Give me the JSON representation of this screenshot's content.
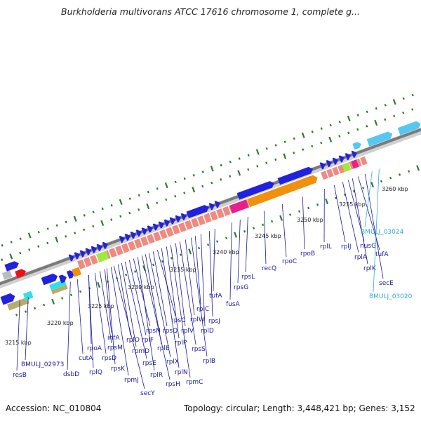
{
  "title": "Burkholderia multivorans ATCC 17616 chromosome 1, complete g...",
  "accession_text": "Accession: NC_010804",
  "summary_text": "Topology: circular; Length: 3,448,421 bp; Genes: 3,152",
  "colors": {
    "forward_cds": "#2222dd",
    "reverse_cds": "#55c8f0",
    "rrna": "#f08a80",
    "operon_orange": "#f0900c",
    "magenta": "#e8208c",
    "green": "#a0ea40",
    "gc_tick": "#2d7a2d",
    "label_default": "#1a1a9a",
    "label_highlight": "#33aadd"
  },
  "scale_ticks": [
    "3215 kbp",
    "3220 kbp",
    "3225 kbp",
    "3230 kbp",
    "3235 kbp",
    "3240 kbp",
    "3245 kbp",
    "3250 kbp",
    "3255 kbp",
    "3260 kbp"
  ],
  "gene_labels": [
    {
      "text": "resB",
      "highlight": false
    },
    {
      "text": "BMULJ_02973",
      "highlight": false
    },
    {
      "text": "dsbD",
      "highlight": false
    },
    {
      "text": "cutA",
      "highlight": false
    },
    {
      "text": "rpoA",
      "highlight": false
    },
    {
      "text": "rplQ",
      "highlight": false
    },
    {
      "text": "rpsD",
      "highlight": false
    },
    {
      "text": "rpsM",
      "highlight": false
    },
    {
      "text": "infA",
      "highlight": false
    },
    {
      "text": "rpsK",
      "highlight": false
    },
    {
      "text": "rpmJ",
      "highlight": false
    },
    {
      "text": "secY",
      "highlight": false
    },
    {
      "text": "rplO",
      "highlight": false
    },
    {
      "text": "rpmD",
      "highlight": false
    },
    {
      "text": "rpsE",
      "highlight": false
    },
    {
      "text": "rplF",
      "highlight": false
    },
    {
      "text": "rpsN",
      "highlight": false
    },
    {
      "text": "rplR",
      "highlight": false
    },
    {
      "text": "rpsH",
      "highlight": false
    },
    {
      "text": "rplE",
      "highlight": false
    },
    {
      "text": "rplX",
      "highlight": false
    },
    {
      "text": "rpsQ",
      "highlight": false
    },
    {
      "text": "rpsC",
      "highlight": false
    },
    {
      "text": "rplN",
      "highlight": false
    },
    {
      "text": "rplP",
      "highlight": false
    },
    {
      "text": "rpmC",
      "highlight": false
    },
    {
      "text": "rplV",
      "highlight": false
    },
    {
      "text": "rpsS",
      "highlight": false
    },
    {
      "text": "rplW",
      "highlight": false
    },
    {
      "text": "rplB",
      "highlight": false
    },
    {
      "text": "rplC",
      "highlight": false
    },
    {
      "text": "rplD",
      "highlight": false
    },
    {
      "text": "rpsJ",
      "highlight": false
    },
    {
      "text": "tufA",
      "highlight": false
    },
    {
      "text": "fusA",
      "highlight": false
    },
    {
      "text": "rpsG",
      "highlight": false
    },
    {
      "text": "rpsL",
      "highlight": false
    },
    {
      "text": "recQ",
      "highlight": false
    },
    {
      "text": "rpoC",
      "highlight": false
    },
    {
      "text": "rpoB",
      "highlight": false
    },
    {
      "text": "rplL",
      "highlight": false
    },
    {
      "text": "rplJ",
      "highlight": false
    },
    {
      "text": "rplA",
      "highlight": false
    },
    {
      "text": "nusG",
      "highlight": false
    },
    {
      "text": "rplK",
      "highlight": false
    },
    {
      "text": "tufA",
      "highlight": false
    },
    {
      "text": "secE",
      "highlight": false
    },
    {
      "text": "BMULJ_03024",
      "highlight": true
    },
    {
      "text": "BMULJ_03020",
      "highlight": true
    }
  ]
}
